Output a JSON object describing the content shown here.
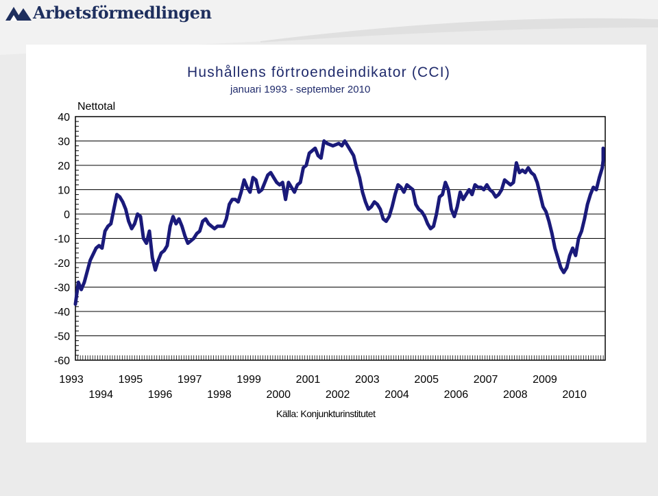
{
  "brand": {
    "name": "Arbetsförmedlingen",
    "color": "#1e2f5e"
  },
  "chart_data": {
    "type": "line",
    "title": "Hushållens förtroendeindikator (CCI)",
    "subtitle": "januari 1993 - september 2010",
    "ylabel": "Nettotal",
    "source": "Källa: Konjunkturinstitutet",
    "ylim": [
      -60,
      40
    ],
    "yticks": [
      40,
      30,
      20,
      10,
      0,
      -10,
      -20,
      -30,
      -40,
      -50,
      -60
    ],
    "ytick_labels": [
      "40",
      "30",
      "20",
      "10",
      "0",
      "-10",
      "-20",
      "-30",
      "-40",
      "-50",
      "-60"
    ],
    "xlim": [
      1993.0,
      2010.9
    ],
    "xticks_row1": [
      "1993",
      "1995",
      "1997",
      "1999",
      "2001",
      "2003",
      "2005",
      "2007",
      "2009"
    ],
    "xticks_row2": [
      "1994",
      "1996",
      "1998",
      "2000",
      "2002",
      "2004",
      "2006",
      "2008",
      "2010"
    ],
    "grid": "horizontal",
    "line_color": "#1a1a7a",
    "series": [
      {
        "points": [
          [
            1993.0,
            -37
          ],
          [
            1993.1,
            -28
          ],
          [
            1993.2,
            -31
          ],
          [
            1993.3,
            -28
          ],
          [
            1993.5,
            -19
          ],
          [
            1993.7,
            -14
          ],
          [
            1993.8,
            -13
          ],
          [
            1993.9,
            -14
          ],
          [
            1994.0,
            -7
          ],
          [
            1994.1,
            -5
          ],
          [
            1994.2,
            -4
          ],
          [
            1994.3,
            2
          ],
          [
            1994.4,
            8
          ],
          [
            1994.5,
            7
          ],
          [
            1994.6,
            5
          ],
          [
            1994.7,
            2
          ],
          [
            1994.8,
            -3
          ],
          [
            1994.9,
            -6
          ],
          [
            1995.0,
            -4
          ],
          [
            1995.1,
            0
          ],
          [
            1995.2,
            -1
          ],
          [
            1995.3,
            -10
          ],
          [
            1995.4,
            -12
          ],
          [
            1995.5,
            -7
          ],
          [
            1995.6,
            -18
          ],
          [
            1995.7,
            -23
          ],
          [
            1995.8,
            -19
          ],
          [
            1995.9,
            -16
          ],
          [
            1996.0,
            -15
          ],
          [
            1996.1,
            -13
          ],
          [
            1996.2,
            -5
          ],
          [
            1996.3,
            -1
          ],
          [
            1996.4,
            -4
          ],
          [
            1996.5,
            -2
          ],
          [
            1996.6,
            -5
          ],
          [
            1996.7,
            -9
          ],
          [
            1996.8,
            -12
          ],
          [
            1996.9,
            -11
          ],
          [
            1997.0,
            -10
          ],
          [
            1997.1,
            -8
          ],
          [
            1997.2,
            -7
          ],
          [
            1997.3,
            -3
          ],
          [
            1997.4,
            -2
          ],
          [
            1997.5,
            -4
          ],
          [
            1997.6,
            -5
          ],
          [
            1997.7,
            -6
          ],
          [
            1997.8,
            -5
          ],
          [
            1997.9,
            -5
          ],
          [
            1998.0,
            -5
          ],
          [
            1998.1,
            -2
          ],
          [
            1998.2,
            4
          ],
          [
            1998.3,
            6
          ],
          [
            1998.4,
            6
          ],
          [
            1998.5,
            5
          ],
          [
            1998.6,
            9
          ],
          [
            1998.7,
            14
          ],
          [
            1998.8,
            11
          ],
          [
            1998.9,
            9
          ],
          [
            1999.0,
            15
          ],
          [
            1999.1,
            14
          ],
          [
            1999.2,
            9
          ],
          [
            1999.3,
            10
          ],
          [
            1999.4,
            13
          ],
          [
            1999.5,
            16
          ],
          [
            1999.6,
            17
          ],
          [
            1999.7,
            15
          ],
          [
            1999.8,
            13
          ],
          [
            1999.9,
            12
          ],
          [
            2000.0,
            13
          ],
          [
            2000.1,
            6
          ],
          [
            2000.2,
            13
          ],
          [
            2000.3,
            11
          ],
          [
            2000.4,
            9
          ],
          [
            2000.5,
            12
          ],
          [
            2000.6,
            13
          ],
          [
            2000.7,
            19
          ],
          [
            2000.8,
            20
          ],
          [
            2000.9,
            25
          ],
          [
            2001.0,
            26
          ],
          [
            2001.1,
            27
          ],
          [
            2001.2,
            24
          ],
          [
            2001.3,
            23
          ],
          [
            2001.4,
            30
          ],
          [
            2001.5,
            29
          ],
          [
            2001.7,
            28
          ],
          [
            2001.9,
            29
          ],
          [
            2002.0,
            28
          ],
          [
            2002.1,
            30
          ],
          [
            2002.2,
            28
          ],
          [
            2002.3,
            26
          ],
          [
            2002.4,
            24
          ],
          [
            2002.5,
            19
          ],
          [
            2002.6,
            15
          ],
          [
            2002.7,
            9
          ],
          [
            2002.8,
            5
          ],
          [
            2002.9,
            2
          ],
          [
            2003.0,
            3
          ],
          [
            2003.1,
            5
          ],
          [
            2003.2,
            4
          ],
          [
            2003.3,
            2
          ],
          [
            2003.4,
            -2
          ],
          [
            2003.5,
            -3
          ],
          [
            2003.6,
            -1
          ],
          [
            2003.7,
            3
          ],
          [
            2003.8,
            8
          ],
          [
            2003.9,
            12
          ],
          [
            2004.0,
            11
          ],
          [
            2004.1,
            9
          ],
          [
            2004.2,
            12
          ],
          [
            2004.3,
            11
          ],
          [
            2004.4,
            10
          ],
          [
            2004.5,
            4
          ],
          [
            2004.6,
            2
          ],
          [
            2004.7,
            1
          ],
          [
            2004.8,
            -1
          ],
          [
            2004.9,
            -4
          ],
          [
            2005.0,
            -6
          ],
          [
            2005.1,
            -5
          ],
          [
            2005.2,
            0
          ],
          [
            2005.3,
            7
          ],
          [
            2005.4,
            8
          ],
          [
            2005.5,
            13
          ],
          [
            2005.6,
            10
          ],
          [
            2005.7,
            2
          ],
          [
            2005.8,
            -1
          ],
          [
            2005.9,
            3
          ],
          [
            2006.0,
            9
          ],
          [
            2006.1,
            6
          ],
          [
            2006.2,
            8
          ],
          [
            2006.3,
            10
          ],
          [
            2006.4,
            8
          ],
          [
            2006.5,
            12
          ],
          [
            2006.6,
            11
          ],
          [
            2006.7,
            11
          ],
          [
            2006.8,
            10
          ],
          [
            2006.9,
            12
          ],
          [
            2007.0,
            10
          ],
          [
            2007.1,
            9
          ],
          [
            2007.2,
            7
          ],
          [
            2007.3,
            8
          ],
          [
            2007.4,
            10
          ],
          [
            2007.5,
            14
          ],
          [
            2007.6,
            13
          ],
          [
            2007.7,
            12
          ],
          [
            2007.8,
            13
          ],
          [
            2007.9,
            21
          ],
          [
            2008.0,
            17
          ],
          [
            2008.1,
            18
          ],
          [
            2008.2,
            17
          ],
          [
            2008.3,
            19
          ],
          [
            2008.4,
            17
          ],
          [
            2008.5,
            16
          ],
          [
            2008.6,
            13
          ],
          [
            2008.7,
            8
          ],
          [
            2008.8,
            3
          ],
          [
            2008.9,
            1
          ],
          [
            2009.0,
            -3
          ],
          [
            2009.1,
            -8
          ],
          [
            2009.2,
            -14
          ],
          [
            2009.3,
            -18
          ],
          [
            2009.4,
            -22
          ],
          [
            2009.5,
            -24
          ],
          [
            2009.6,
            -22
          ],
          [
            2009.7,
            -17
          ],
          [
            2009.8,
            -14
          ],
          [
            2009.9,
            -17
          ],
          [
            2010.0,
            -10
          ],
          [
            2010.1,
            -7
          ],
          [
            2010.2,
            -2
          ],
          [
            2010.3,
            4
          ],
          [
            2010.4,
            8
          ],
          [
            2010.5,
            11
          ],
          [
            2010.6,
            10
          ],
          [
            2010.7,
            15
          ],
          [
            2010.8,
            19
          ],
          [
            2010.9,
            22
          ],
          [
            2011.0,
            24
          ],
          [
            2011.1,
            27
          ]
        ]
      }
    ]
  }
}
